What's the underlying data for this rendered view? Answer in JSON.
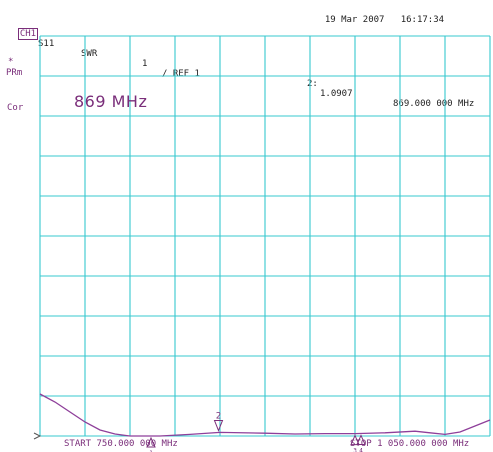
{
  "header": {
    "date": "19 Mar 2007",
    "time": "16:17:34",
    "channel": "CH1",
    "parameter": "S11",
    "format": "SWR",
    "scale": "1",
    "ref": "/ REF 1",
    "marker_label": "2:",
    "marker_value": "1.0907",
    "marker_freq": "869.000 000 MHz"
  },
  "side_labels": {
    "star": "*",
    "prm": "PRm",
    "cor": "Cor"
  },
  "annotation": "869 MHz",
  "footer": {
    "start": "START 750.000 000 MHz",
    "stop": "STOP 1 050.000 000 MHz"
  },
  "markers": [
    {
      "label": "2",
      "freq_mhz": 869,
      "active": true
    },
    {
      "label": "1",
      "freq_mhz": 824,
      "active": false
    },
    {
      "label": "3",
      "freq_mhz": 960,
      "active": false
    },
    {
      "label": "4",
      "freq_mhz": 964,
      "active": false
    }
  ],
  "chart_data": {
    "type": "line",
    "x_unit": "MHz",
    "x_range": [
      750,
      1050
    ],
    "y_range": [
      1,
      11
    ],
    "grid": true,
    "grid_divisions": {
      "x": 10,
      "y": 10
    },
    "series": [
      {
        "color": "#8e3f9a",
        "x": [
          750,
          760,
          770,
          780,
          790,
          800,
          810,
          820,
          830,
          850,
          870,
          900,
          920,
          940,
          960,
          980,
          1000,
          1010,
          1020,
          1030,
          1040,
          1050
        ],
        "y": [
          2.05,
          1.85,
          1.6,
          1.35,
          1.15,
          1.05,
          1.0,
          1.0,
          1.0,
          1.04,
          1.09,
          1.07,
          1.05,
          1.06,
          1.06,
          1.08,
          1.12,
          1.08,
          1.04,
          1.1,
          1.25,
          1.4
        ]
      }
    ]
  }
}
